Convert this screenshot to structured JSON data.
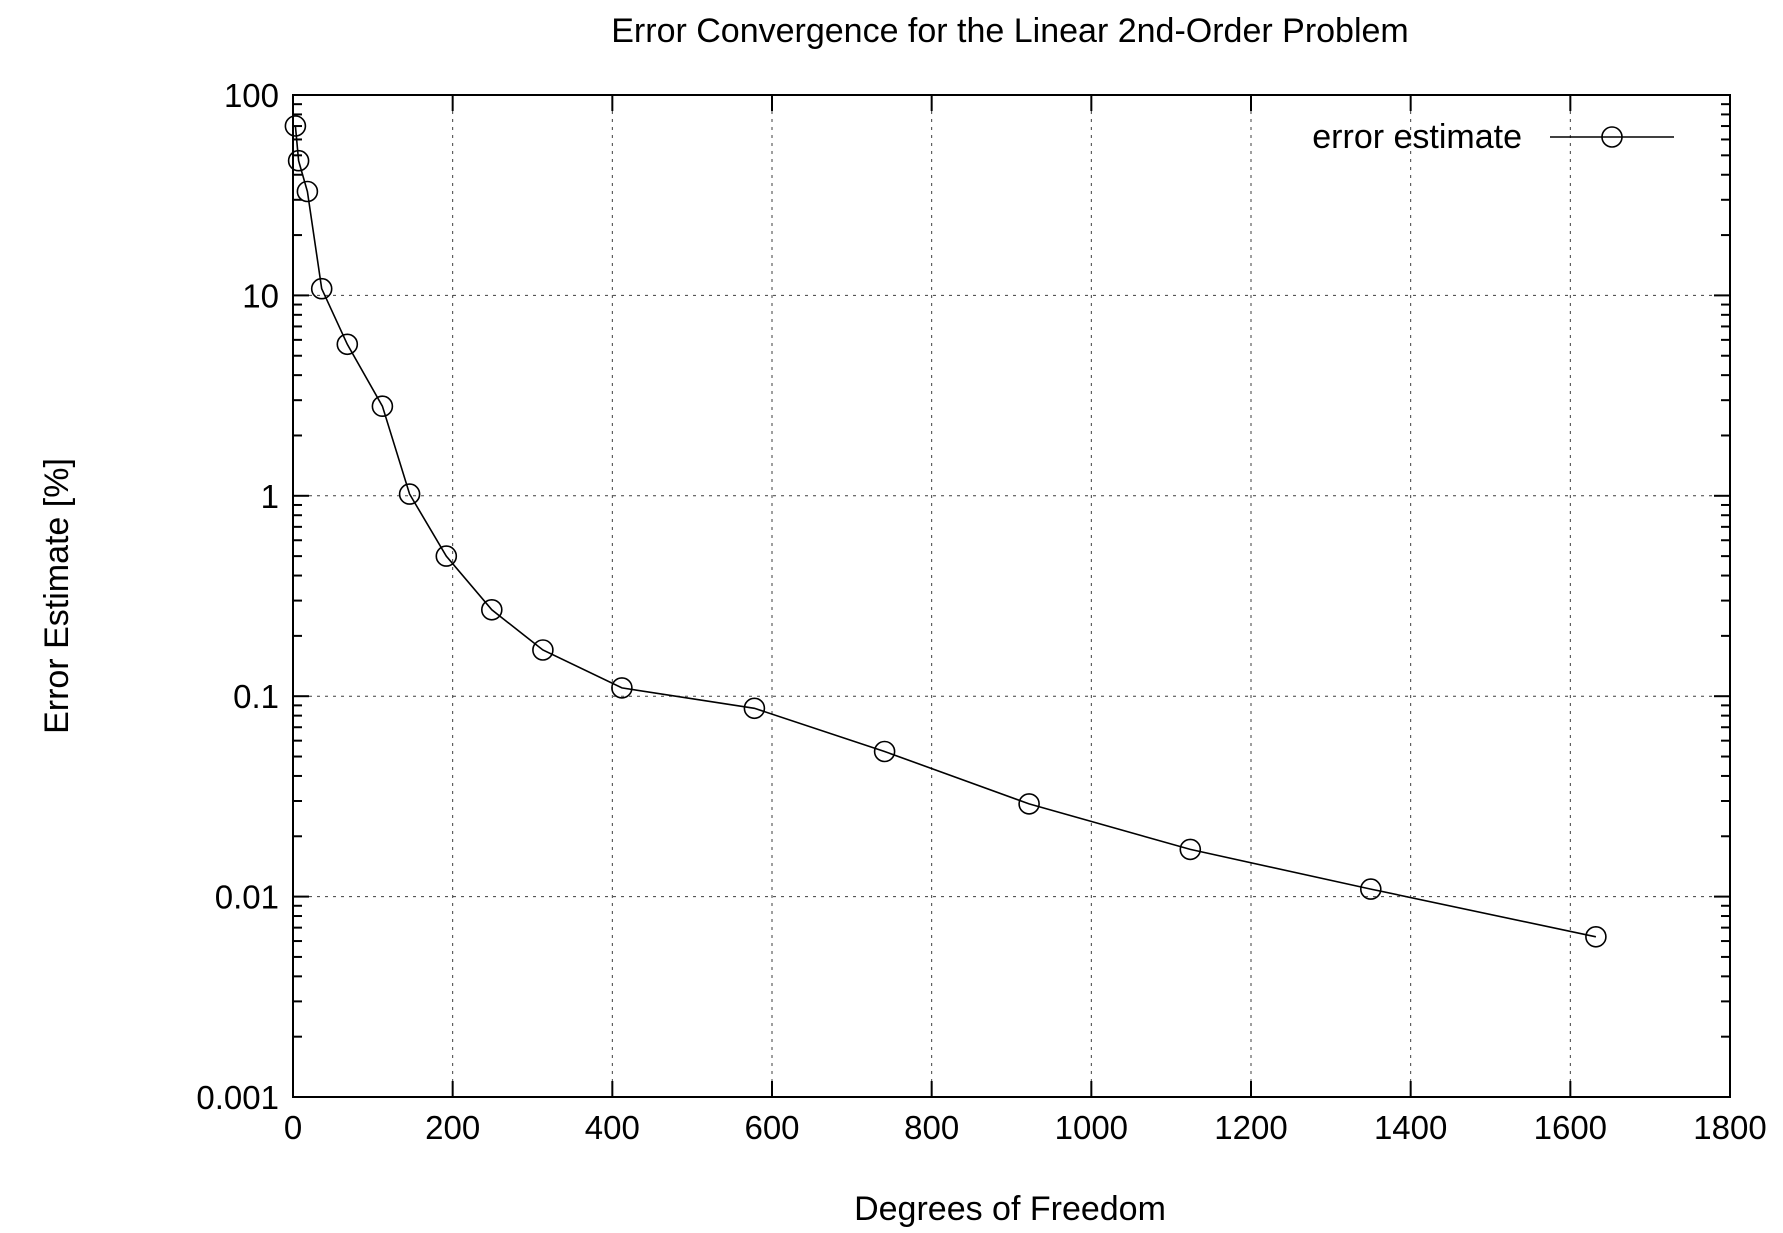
{
  "chart_data": {
    "type": "line",
    "title": "Error Convergence for the Linear 2nd-Order Problem",
    "xlabel": "Degrees of Freedom",
    "ylabel": "Error Estimate [%]",
    "xlim": [
      0,
      1800
    ],
    "ylim": [
      0.001,
      100
    ],
    "yscale": "log",
    "x_ticks": [
      "0",
      "200",
      "400",
      "600",
      "800",
      "1000",
      "1200",
      "1400",
      "1600",
      "1800"
    ],
    "y_ticks": [
      "0.001",
      "0.01",
      "0.1",
      "1",
      "10",
      "100"
    ],
    "grid": true,
    "legend_position": "top-right",
    "series": [
      {
        "name": "error estimate",
        "marker": "circle",
        "color": "#000000",
        "x": [
          3,
          7,
          18,
          36,
          68,
          112,
          146,
          192,
          249,
          313,
          412,
          578,
          741,
          922,
          1124,
          1350,
          1632
        ],
        "y": [
          70,
          47,
          33,
          10.8,
          5.7,
          2.8,
          1.02,
          0.5,
          0.27,
          0.17,
          0.11,
          0.087,
          0.053,
          0.029,
          0.0172,
          0.0109,
          0.0063
        ]
      }
    ]
  }
}
